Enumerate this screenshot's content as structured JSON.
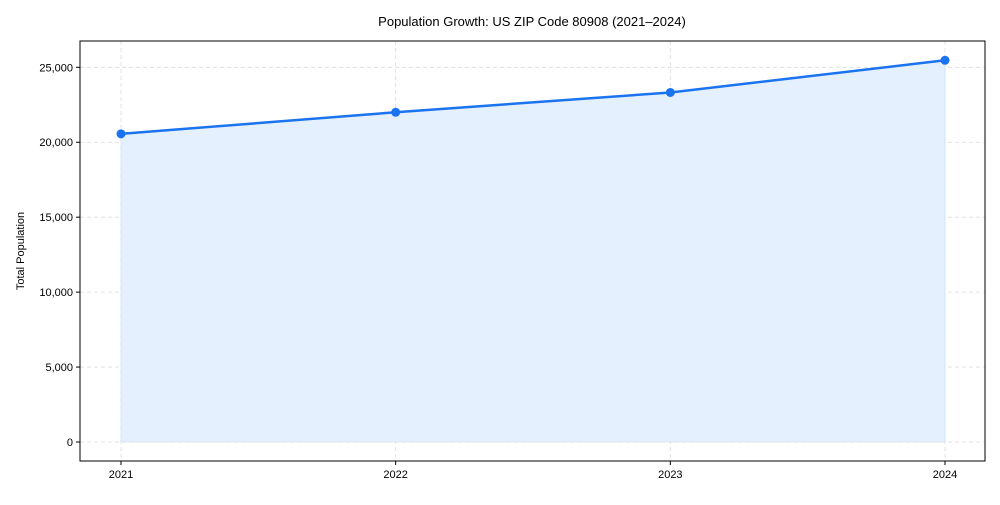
{
  "chart_data": {
    "type": "area",
    "title": "Population Growth: US ZIP Code 80908 (2021–2024)",
    "xlabel": "",
    "ylabel": "Total Population",
    "x": [
      "2021",
      "2022",
      "2023",
      "2024"
    ],
    "series": [
      {
        "name": "Total Population",
        "values": [
          20560,
          22000,
          23320,
          25470
        ],
        "color": "#1a73f0",
        "fill": "#e5f0fe"
      }
    ],
    "ylim": [
      -1300,
      26800
    ],
    "yticks": [
      0,
      5000,
      10000,
      15000,
      20000,
      25000
    ],
    "ytick_labels": [
      "0",
      "5,000",
      "10,000",
      "15,000",
      "20,000",
      "25,000"
    ],
    "grid": true,
    "legend": "none"
  }
}
